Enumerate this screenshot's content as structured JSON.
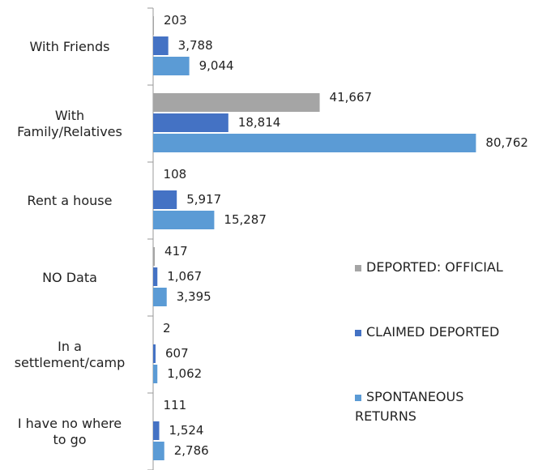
{
  "chart_data": {
    "type": "barh",
    "categories": [
      "With Friends",
      "With\nFamily/Relatives",
      "Rent a house",
      "NO Data",
      "In a\nsettlement/camp",
      "I have no where\nto go"
    ],
    "series": [
      {
        "name": "DEPORTED: OFFICIAL",
        "color": "#a5a5a5",
        "values": [
          203,
          41667,
          108,
          417,
          2,
          111
        ],
        "value_labels": [
          "203",
          "41,667",
          "108",
          "417",
          "2",
          "111"
        ]
      },
      {
        "name": "CLAIMED DEPORTED",
        "color": "#4472c4",
        "values": [
          3788,
          18814,
          5917,
          1067,
          607,
          1524
        ],
        "value_labels": [
          "3,788",
          "18,814",
          "5,917",
          "1,067",
          "607",
          "1,524"
        ]
      },
      {
        "name": "SPONTANEOUS RETURNS",
        "color": "#5b9bd5",
        "values": [
          9044,
          80762,
          15287,
          3395,
          1062,
          2786
        ],
        "value_labels": [
          "9,044",
          "80,762",
          "15,287",
          "3,395",
          "1,062",
          "2,786"
        ]
      }
    ],
    "xlim": [
      0,
      90000
    ],
    "legend": "right"
  }
}
